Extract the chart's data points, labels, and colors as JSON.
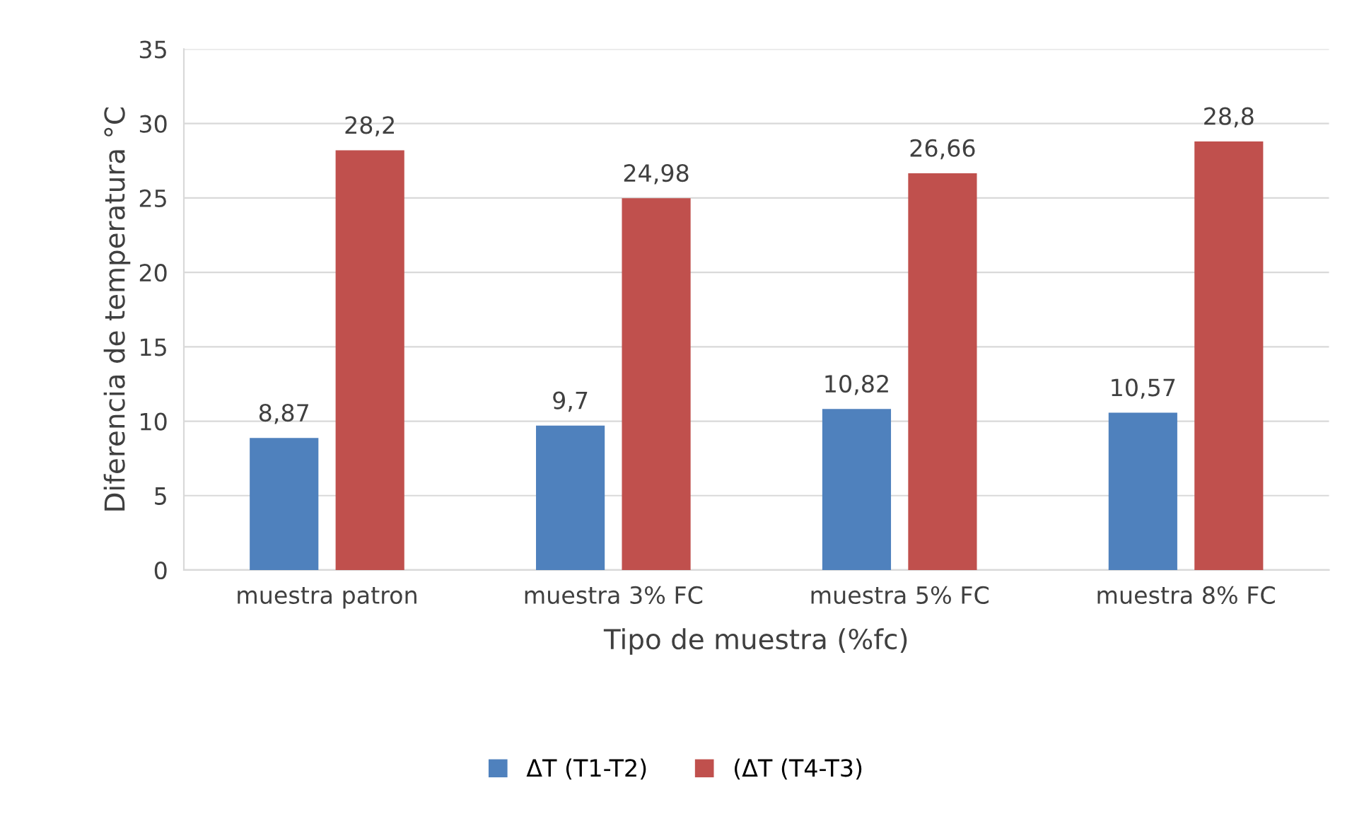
{
  "chart_data": {
    "type": "bar",
    "xlabel": "Tipo de muestra (%fc)",
    "ylabel": "Diferencia de temperatura °C",
    "categories": [
      "muestra patron",
      "muestra 3% FC",
      "muestra 5% FC",
      "muestra 8% FC"
    ],
    "series": [
      {
        "name": "ΔT (T1-T2)",
        "color": "#4f81bd",
        "values": [
          8.87,
          9.7,
          10.82,
          10.57
        ],
        "value_labels": [
          "8,87",
          "9,7",
          "10,82",
          "10,57"
        ]
      },
      {
        "name": "(ΔT (T4-T3)",
        "color": "#c0504d",
        "values": [
          28.2,
          24.98,
          26.66,
          28.8
        ],
        "value_labels": [
          "28,2",
          "24,98",
          "26,66",
          "28,8"
        ]
      }
    ],
    "ylim": [
      0,
      35
    ],
    "yticks": [
      0,
      5,
      10,
      15,
      20,
      25,
      30,
      35
    ],
    "grid": "y",
    "legend": "bottom"
  }
}
